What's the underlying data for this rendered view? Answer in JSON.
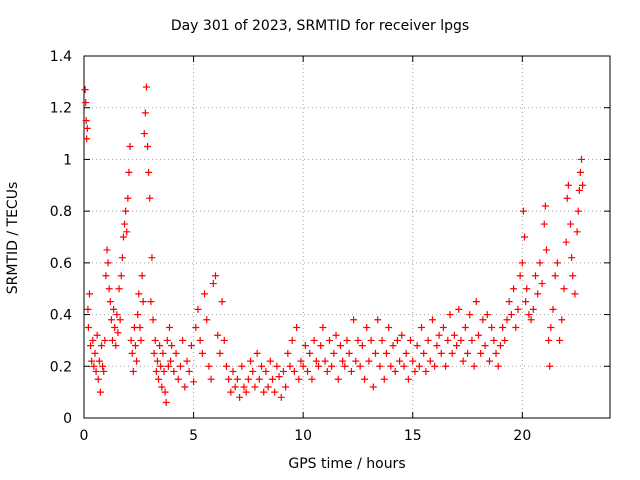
{
  "chart_data": {
    "type": "scatter",
    "title": "Day 301 of 2023, SRMTID for receiver lpgs",
    "xlabel": "GPS time / hours",
    "ylabel": "SRMTID / TECUs",
    "xlim": [
      0,
      24
    ],
    "ylim": [
      0,
      1.4
    ],
    "x_ticks": [
      0,
      5,
      10,
      15,
      20
    ],
    "x_tick_labels": [
      "0",
      "5",
      "10",
      "15",
      "20"
    ],
    "y_ticks": [
      0,
      0.2,
      0.4,
      0.6,
      0.8,
      1,
      1.2,
      1.4
    ],
    "y_tick_labels": [
      "0",
      "0.2",
      "0.4",
      "0.6",
      "0.8",
      "1",
      "1.2",
      "1.4"
    ],
    "grid": true,
    "marker": "+",
    "color": "#ff0000",
    "series": [
      {
        "name": "SRMTID",
        "points": [
          [
            0.05,
            1.27
          ],
          [
            0.08,
            1.22
          ],
          [
            0.1,
            1.15
          ],
          [
            0.12,
            1.08
          ],
          [
            0.15,
            1.12
          ],
          [
            0.18,
            0.42
          ],
          [
            0.2,
            0.35
          ],
          [
            0.25,
            0.48
          ],
          [
            0.3,
            0.28
          ],
          [
            0.35,
            0.22
          ],
          [
            0.4,
            0.3
          ],
          [
            0.45,
            0.2
          ],
          [
            0.5,
            0.25
          ],
          [
            0.55,
            0.18
          ],
          [
            0.6,
            0.32
          ],
          [
            0.65,
            0.15
          ],
          [
            0.7,
            0.22
          ],
          [
            0.75,
            0.1
          ],
          [
            0.8,
            0.28
          ],
          [
            0.85,
            0.2
          ],
          [
            0.9,
            0.18
          ],
          [
            0.95,
            0.3
          ],
          [
            1.0,
            0.55
          ],
          [
            1.05,
            0.65
          ],
          [
            1.1,
            0.6
          ],
          [
            1.15,
            0.5
          ],
          [
            1.2,
            0.45
          ],
          [
            1.25,
            0.38
          ],
          [
            1.3,
            0.3
          ],
          [
            1.35,
            0.42
          ],
          [
            1.4,
            0.35
          ],
          [
            1.45,
            0.28
          ],
          [
            1.5,
            0.4
          ],
          [
            1.55,
            0.33
          ],
          [
            1.6,
            0.5
          ],
          [
            1.65,
            0.38
          ],
          [
            1.7,
            0.55
          ],
          [
            1.75,
            0.62
          ],
          [
            1.8,
            0.7
          ],
          [
            1.85,
            0.75
          ],
          [
            1.9,
            0.8
          ],
          [
            1.95,
            0.72
          ],
          [
            2.0,
            0.85
          ],
          [
            2.05,
            0.95
          ],
          [
            2.1,
            1.05
          ],
          [
            2.15,
            0.3
          ],
          [
            2.2,
            0.25
          ],
          [
            2.25,
            0.18
          ],
          [
            2.3,
            0.35
          ],
          [
            2.35,
            0.28
          ],
          [
            2.4,
            0.22
          ],
          [
            2.45,
            0.4
          ],
          [
            2.5,
            0.48
          ],
          [
            2.55,
            0.35
          ],
          [
            2.6,
            0.3
          ],
          [
            2.65,
            0.55
          ],
          [
            2.7,
            0.45
          ],
          [
            2.75,
            1.1
          ],
          [
            2.8,
            1.18
          ],
          [
            2.85,
            1.28
          ],
          [
            2.9,
            1.05
          ],
          [
            2.95,
            0.95
          ],
          [
            3.0,
            0.85
          ],
          [
            3.05,
            0.45
          ],
          [
            3.1,
            0.62
          ],
          [
            3.15,
            0.38
          ],
          [
            3.2,
            0.25
          ],
          [
            3.25,
            0.3
          ],
          [
            3.3,
            0.18
          ],
          [
            3.35,
            0.22
          ],
          [
            3.4,
            0.15
          ],
          [
            3.45,
            0.28
          ],
          [
            3.5,
            0.2
          ],
          [
            3.55,
            0.12
          ],
          [
            3.6,
            0.25
          ],
          [
            3.65,
            0.18
          ],
          [
            3.7,
            0.1
          ],
          [
            3.75,
            0.06
          ],
          [
            3.8,
            0.3
          ],
          [
            3.85,
            0.2
          ],
          [
            3.9,
            0.35
          ],
          [
            3.95,
            0.22
          ],
          [
            4.0,
            0.28
          ],
          [
            4.1,
            0.18
          ],
          [
            4.2,
            0.25
          ],
          [
            4.3,
            0.15
          ],
          [
            4.4,
            0.2
          ],
          [
            4.5,
            0.3
          ],
          [
            4.6,
            0.12
          ],
          [
            4.7,
            0.22
          ],
          [
            4.8,
            0.18
          ],
          [
            4.9,
            0.28
          ],
          [
            5.0,
            0.14
          ],
          [
            5.1,
            0.35
          ],
          [
            5.2,
            0.42
          ],
          [
            5.3,
            0.3
          ],
          [
            5.4,
            0.25
          ],
          [
            5.5,
            0.48
          ],
          [
            5.6,
            0.38
          ],
          [
            5.7,
            0.2
          ],
          [
            5.8,
            0.15
          ],
          [
            5.9,
            0.52
          ],
          [
            6.0,
            0.55
          ],
          [
            6.1,
            0.32
          ],
          [
            6.2,
            0.25
          ],
          [
            6.3,
            0.45
          ],
          [
            6.4,
            0.3
          ],
          [
            6.5,
            0.2
          ],
          [
            6.6,
            0.15
          ],
          [
            6.7,
            0.1
          ],
          [
            6.8,
            0.18
          ],
          [
            6.9,
            0.12
          ],
          [
            7.0,
            0.15
          ],
          [
            7.1,
            0.08
          ],
          [
            7.2,
            0.2
          ],
          [
            7.3,
            0.12
          ],
          [
            7.4,
            0.1
          ],
          [
            7.5,
            0.15
          ],
          [
            7.6,
            0.22
          ],
          [
            7.7,
            0.18
          ],
          [
            7.8,
            0.12
          ],
          [
            7.9,
            0.25
          ],
          [
            8.0,
            0.15
          ],
          [
            8.1,
            0.2
          ],
          [
            8.2,
            0.1
          ],
          [
            8.3,
            0.18
          ],
          [
            8.4,
            0.12
          ],
          [
            8.5,
            0.22
          ],
          [
            8.6,
            0.15
          ],
          [
            8.7,
            0.1
          ],
          [
            8.8,
            0.2
          ],
          [
            8.9,
            0.16
          ],
          [
            9.0,
            0.08
          ],
          [
            9.1,
            0.18
          ],
          [
            9.2,
            0.12
          ],
          [
            9.3,
            0.25
          ],
          [
            9.4,
            0.2
          ],
          [
            9.5,
            0.3
          ],
          [
            9.6,
            0.18
          ],
          [
            9.7,
            0.35
          ],
          [
            9.8,
            0.15
          ],
          [
            9.9,
            0.22
          ],
          [
            10.0,
            0.2
          ],
          [
            10.1,
            0.28
          ],
          [
            10.2,
            0.18
          ],
          [
            10.3,
            0.25
          ],
          [
            10.4,
            0.15
          ],
          [
            10.5,
            0.3
          ],
          [
            10.6,
            0.22
          ],
          [
            10.7,
            0.2
          ],
          [
            10.8,
            0.28
          ],
          [
            10.9,
            0.35
          ],
          [
            11.0,
            0.22
          ],
          [
            11.1,
            0.18
          ],
          [
            11.2,
            0.3
          ],
          [
            11.3,
            0.2
          ],
          [
            11.4,
            0.25
          ],
          [
            11.5,
            0.32
          ],
          [
            11.6,
            0.15
          ],
          [
            11.7,
            0.28
          ],
          [
            11.8,
            0.22
          ],
          [
            11.9,
            0.2
          ],
          [
            12.0,
            0.3
          ],
          [
            12.1,
            0.25
          ],
          [
            12.2,
            0.18
          ],
          [
            12.3,
            0.38
          ],
          [
            12.4,
            0.22
          ],
          [
            12.5,
            0.3
          ],
          [
            12.6,
            0.2
          ],
          [
            12.7,
            0.28
          ],
          [
            12.8,
            0.15
          ],
          [
            12.9,
            0.35
          ],
          [
            13.0,
            0.22
          ],
          [
            13.1,
            0.3
          ],
          [
            13.2,
            0.12
          ],
          [
            13.3,
            0.25
          ],
          [
            13.4,
            0.38
          ],
          [
            13.5,
            0.2
          ],
          [
            13.6,
            0.3
          ],
          [
            13.7,
            0.15
          ],
          [
            13.8,
            0.25
          ],
          [
            13.9,
            0.35
          ],
          [
            14.0,
            0.2
          ],
          [
            14.1,
            0.28
          ],
          [
            14.2,
            0.18
          ],
          [
            14.3,
            0.3
          ],
          [
            14.4,
            0.22
          ],
          [
            14.5,
            0.32
          ],
          [
            14.6,
            0.2
          ],
          [
            14.7,
            0.25
          ],
          [
            14.8,
            0.15
          ],
          [
            14.9,
            0.3
          ],
          [
            15.0,
            0.22
          ],
          [
            15.1,
            0.18
          ],
          [
            15.2,
            0.28
          ],
          [
            15.3,
            0.2
          ],
          [
            15.4,
            0.35
          ],
          [
            15.5,
            0.25
          ],
          [
            15.6,
            0.18
          ],
          [
            15.7,
            0.3
          ],
          [
            15.8,
            0.22
          ],
          [
            15.9,
            0.38
          ],
          [
            16.0,
            0.2
          ],
          [
            16.1,
            0.28
          ],
          [
            16.2,
            0.32
          ],
          [
            16.3,
            0.25
          ],
          [
            16.4,
            0.35
          ],
          [
            16.5,
            0.2
          ],
          [
            16.6,
            0.3
          ],
          [
            16.7,
            0.4
          ],
          [
            16.8,
            0.25
          ],
          [
            16.9,
            0.32
          ],
          [
            17.0,
            0.28
          ],
          [
            17.1,
            0.42
          ],
          [
            17.2,
            0.3
          ],
          [
            17.3,
            0.22
          ],
          [
            17.4,
            0.35
          ],
          [
            17.5,
            0.25
          ],
          [
            17.6,
            0.4
          ],
          [
            17.7,
            0.3
          ],
          [
            17.8,
            0.2
          ],
          [
            17.9,
            0.45
          ],
          [
            18.0,
            0.32
          ],
          [
            18.1,
            0.25
          ],
          [
            18.2,
            0.38
          ],
          [
            18.3,
            0.28
          ],
          [
            18.4,
            0.4
          ],
          [
            18.5,
            0.22
          ],
          [
            18.6,
            0.35
          ],
          [
            18.7,
            0.3
          ],
          [
            18.8,
            0.25
          ],
          [
            18.9,
            0.2
          ],
          [
            19.0,
            0.28
          ],
          [
            19.1,
            0.35
          ],
          [
            19.2,
            0.3
          ],
          [
            19.3,
            0.38
          ],
          [
            19.4,
            0.45
          ],
          [
            19.5,
            0.4
          ],
          [
            19.6,
            0.5
          ],
          [
            19.7,
            0.35
          ],
          [
            19.8,
            0.42
          ],
          [
            19.9,
            0.55
          ],
          [
            20.0,
            0.6
          ],
          [
            20.05,
            0.8
          ],
          [
            20.1,
            0.7
          ],
          [
            20.15,
            0.45
          ],
          [
            20.2,
            0.5
          ],
          [
            20.3,
            0.4
          ],
          [
            20.4,
            0.38
          ],
          [
            20.5,
            0.42
          ],
          [
            20.6,
            0.55
          ],
          [
            20.7,
            0.48
          ],
          [
            20.8,
            0.6
          ],
          [
            20.9,
            0.52
          ],
          [
            21.0,
            0.75
          ],
          [
            21.05,
            0.82
          ],
          [
            21.1,
            0.65
          ],
          [
            21.2,
            0.3
          ],
          [
            21.25,
            0.2
          ],
          [
            21.3,
            0.35
          ],
          [
            21.4,
            0.42
          ],
          [
            21.5,
            0.55
          ],
          [
            21.6,
            0.6
          ],
          [
            21.7,
            0.3
          ],
          [
            21.8,
            0.38
          ],
          [
            21.9,
            0.5
          ],
          [
            22.0,
            0.68
          ],
          [
            22.05,
            0.85
          ],
          [
            22.1,
            0.9
          ],
          [
            22.2,
            0.75
          ],
          [
            22.25,
            0.62
          ],
          [
            22.3,
            0.55
          ],
          [
            22.4,
            0.48
          ],
          [
            22.5,
            0.72
          ],
          [
            22.55,
            0.8
          ],
          [
            22.6,
            0.88
          ],
          [
            22.65,
            0.95
          ],
          [
            22.7,
            1.0
          ],
          [
            22.75,
            0.9
          ]
        ]
      }
    ]
  }
}
